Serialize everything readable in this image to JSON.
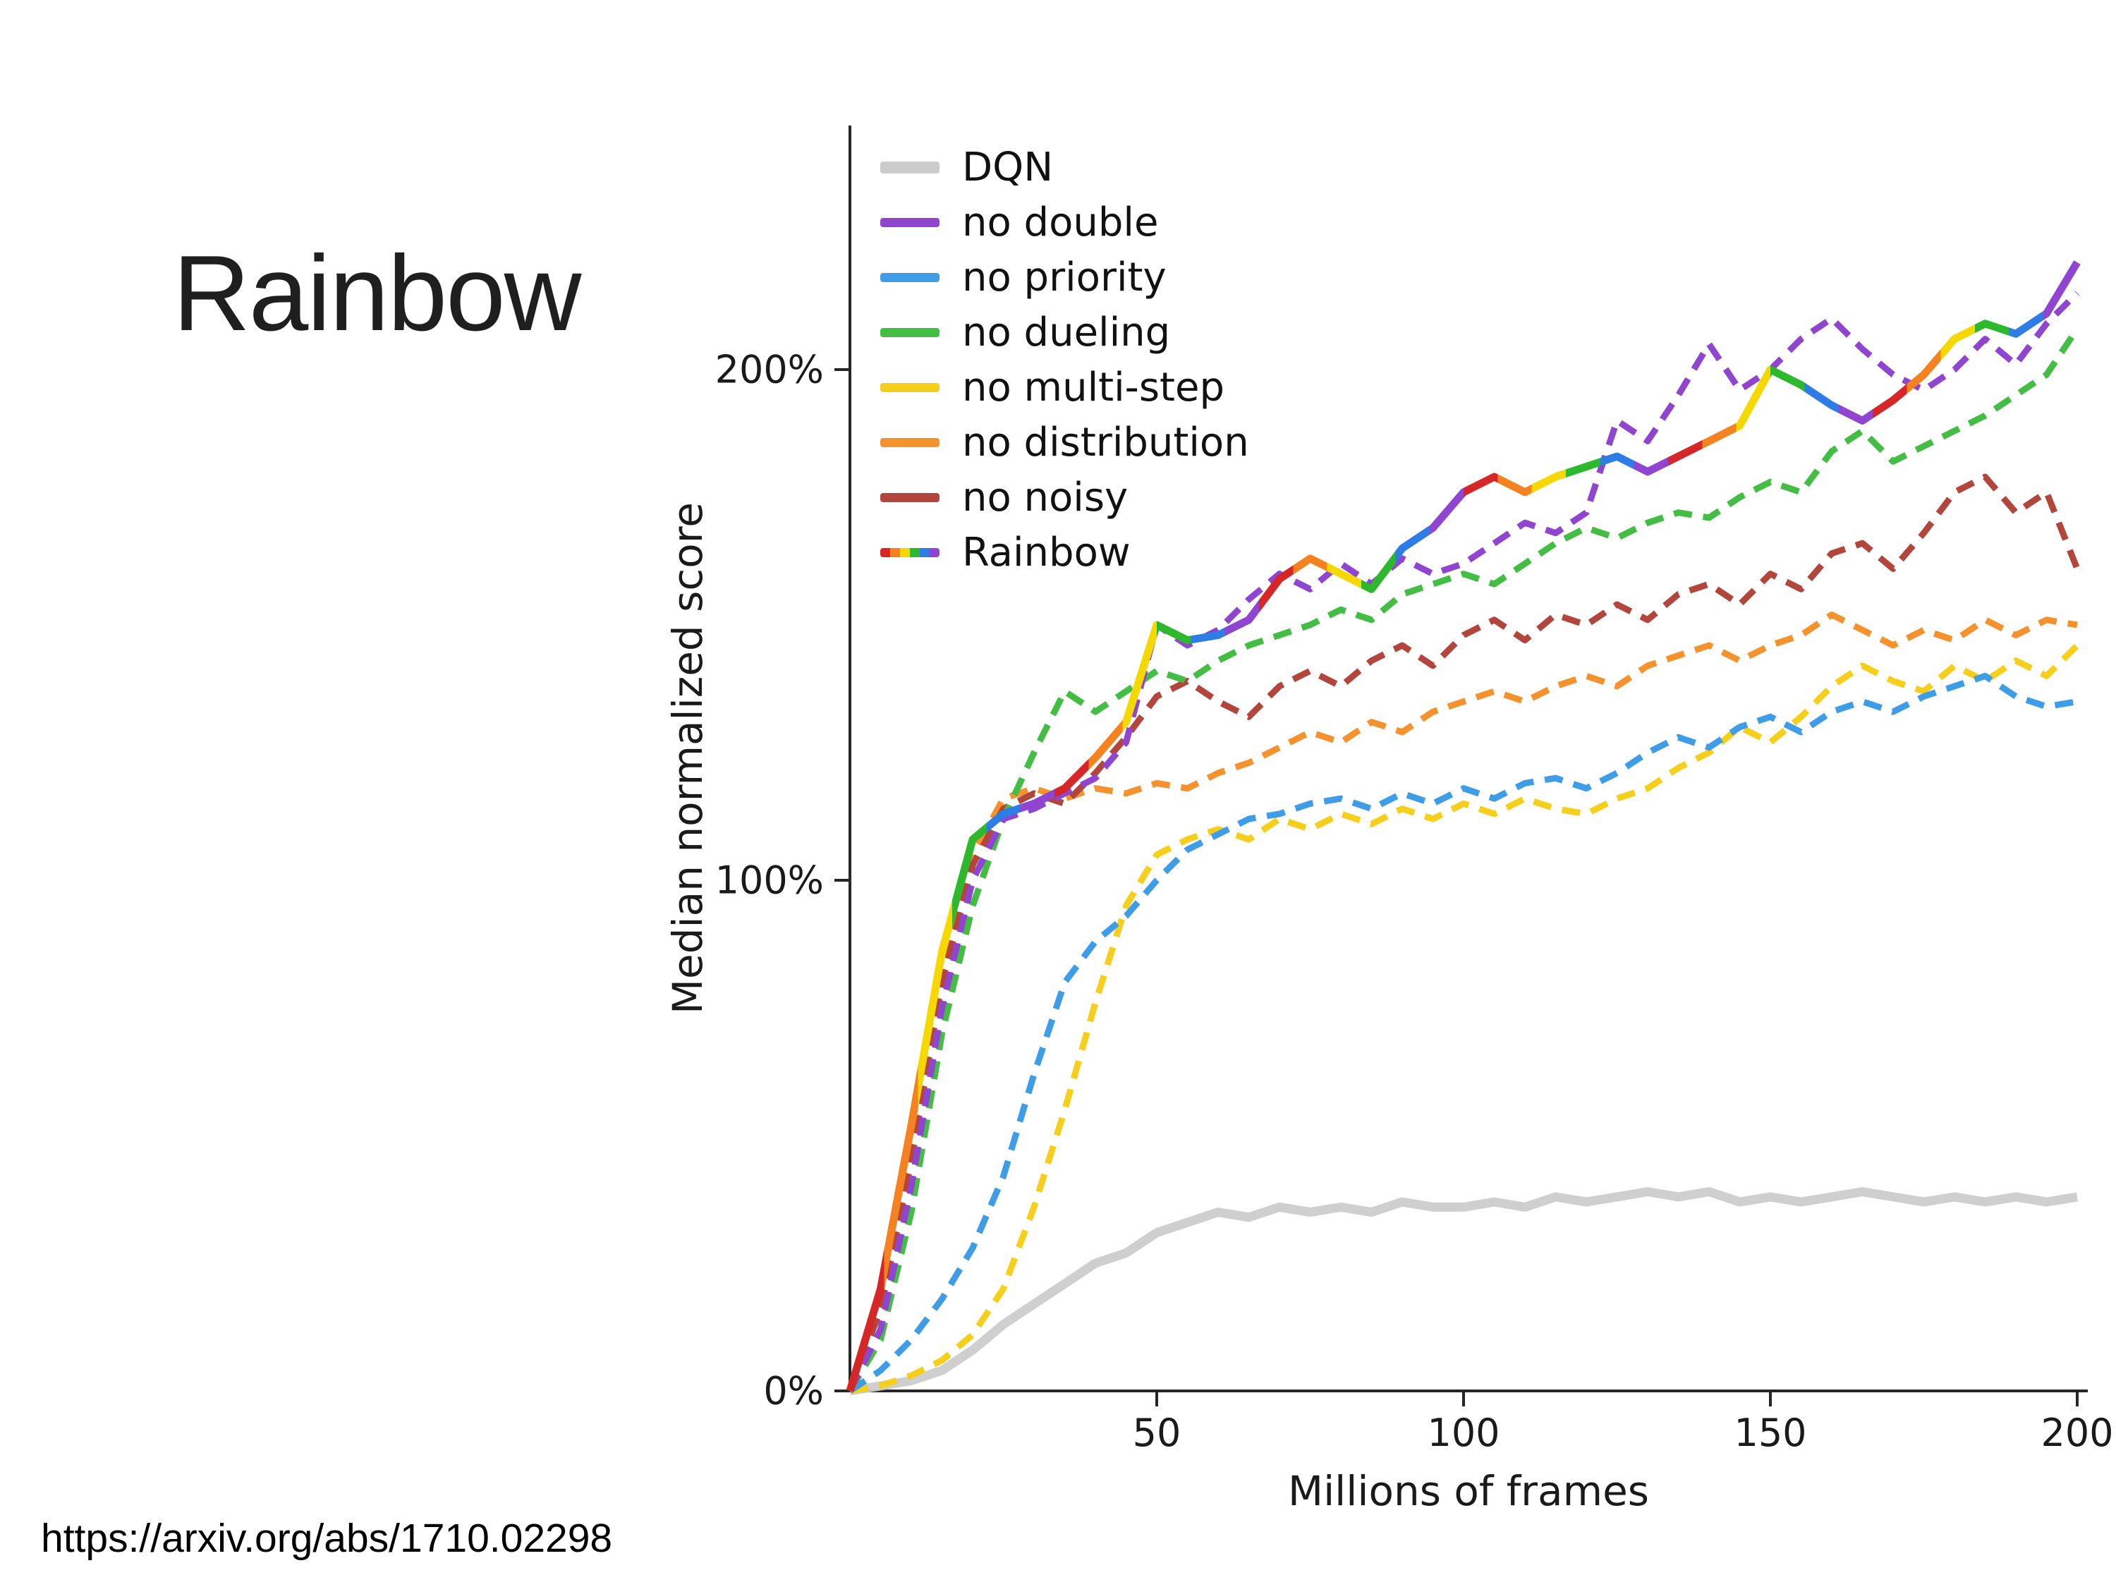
{
  "slide": {
    "title": "Rainbow",
    "source_url": "https://arxiv.org/abs/1710.02298"
  },
  "chart_data": {
    "type": "line",
    "title": "",
    "xlabel": "Millions of frames",
    "ylabel": "Median normalized score",
    "xlim": [
      0,
      200
    ],
    "ylim": [
      0,
      230
    ],
    "x_ticks": [
      50,
      100,
      150,
      200
    ],
    "y_ticks": [
      "0%",
      "100%",
      "200%"
    ],
    "y_tick_values": [
      0,
      100,
      200
    ],
    "grid": false,
    "legend_position": "upper left",
    "axis_color": "#262626",
    "x": [
      0,
      5,
      10,
      15,
      20,
      25,
      30,
      35,
      40,
      45,
      50,
      55,
      60,
      65,
      70,
      75,
      80,
      85,
      90,
      95,
      100,
      105,
      110,
      115,
      120,
      125,
      130,
      135,
      140,
      145,
      150,
      155,
      160,
      165,
      170,
      175,
      180,
      185,
      190,
      195,
      200
    ],
    "series": [
      {
        "name": "DQN",
        "color": "#cccccc",
        "style": "solid",
        "zorder": 1,
        "values": [
          0,
          1,
          2,
          4,
          8,
          13,
          17,
          21,
          25,
          27,
          31,
          33,
          35,
          34,
          36,
          35,
          36,
          35,
          37,
          36,
          36,
          37,
          36,
          38,
          37,
          38,
          39,
          38,
          39,
          37,
          38,
          37,
          38,
          39,
          38,
          37,
          38,
          37,
          38,
          37,
          38
        ]
      },
      {
        "name": "no double",
        "color": "#8f45d0",
        "style": "dashed",
        "zorder": 7,
        "values": [
          0,
          12,
          40,
          75,
          100,
          112,
          114,
          117,
          120,
          127,
          150,
          146,
          149,
          155,
          160,
          157,
          162,
          158,
          163,
          160,
          162,
          166,
          170,
          168,
          172,
          190,
          186,
          195,
          205,
          196,
          200,
          206,
          210,
          204,
          199,
          196,
          200,
          206,
          201,
          209,
          215
        ]
      },
      {
        "name": "no priority",
        "color": "#3f9de8",
        "style": "dashed",
        "zorder": 3,
        "values": [
          0,
          4,
          10,
          18,
          28,
          42,
          62,
          80,
          88,
          93,
          100,
          106,
          109,
          112,
          113,
          115,
          116,
          114,
          117,
          115,
          118,
          116,
          119,
          120,
          118,
          121,
          125,
          128,
          126,
          130,
          132,
          129,
          133,
          135,
          133,
          136,
          138,
          140,
          136,
          134,
          135
        ]
      },
      {
        "name": "no dueling",
        "color": "#44bd44",
        "style": "dashed",
        "zorder": 6,
        "values": [
          0,
          10,
          35,
          70,
          95,
          112,
          125,
          137,
          133,
          137,
          141,
          139,
          143,
          146,
          148,
          150,
          153,
          151,
          156,
          158,
          160,
          158,
          162,
          166,
          169,
          167,
          170,
          172,
          171,
          175,
          178,
          176,
          184,
          188,
          182,
          185,
          188,
          191,
          195,
          199,
          208
        ]
      },
      {
        "name": "no multi-step",
        "color": "#f5cf1b",
        "style": "dashed",
        "zorder": 2,
        "values": [
          0,
          1,
          3,
          6,
          11,
          20,
          36,
          55,
          76,
          95,
          105,
          108,
          110,
          108,
          112,
          110,
          113,
          111,
          114,
          112,
          115,
          113,
          116,
          114,
          113,
          116,
          118,
          122,
          125,
          130,
          127,
          132,
          138,
          142,
          139,
          137,
          142,
          139,
          143,
          140,
          146
        ]
      },
      {
        "name": "no distribution",
        "color": "#f5922d",
        "style": "dashed",
        "zorder": 4,
        "values": [
          0,
          18,
          48,
          82,
          105,
          116,
          118,
          116,
          118,
          117,
          119,
          118,
          121,
          123,
          126,
          129,
          127,
          131,
          129,
          133,
          135,
          137,
          135,
          138,
          140,
          138,
          142,
          144,
          146,
          143,
          146,
          148,
          152,
          149,
          146,
          149,
          147,
          151,
          148,
          151,
          150
        ]
      },
      {
        "name": "no noisy",
        "color": "#b2453c",
        "style": "dashed",
        "zorder": 5,
        "values": [
          0,
          16,
          45,
          80,
          103,
          114,
          117,
          115,
          121,
          128,
          136,
          139,
          135,
          132,
          138,
          141,
          138,
          143,
          146,
          142,
          148,
          151,
          147,
          152,
          150,
          154,
          151,
          156,
          158,
          154,
          160,
          157,
          164,
          166,
          161,
          168,
          176,
          179,
          172,
          176,
          161
        ]
      },
      {
        "name": "Rainbow",
        "color": "rainbow",
        "style": "solid",
        "zorder": 8,
        "rainbow_colors": [
          "#d62728",
          "#f58220",
          "#f5d800",
          "#2db82d",
          "#2e7de6",
          "#8f45d0"
        ],
        "values": [
          0,
          20,
          52,
          86,
          108,
          113,
          115,
          118,
          124,
          131,
          150,
          147,
          148,
          151,
          159,
          163,
          160,
          157,
          165,
          169,
          176,
          179,
          176,
          179,
          181,
          183,
          180,
          183,
          186,
          189,
          200,
          197,
          193,
          190,
          194,
          199,
          206,
          209,
          207,
          211,
          221
        ]
      }
    ]
  }
}
